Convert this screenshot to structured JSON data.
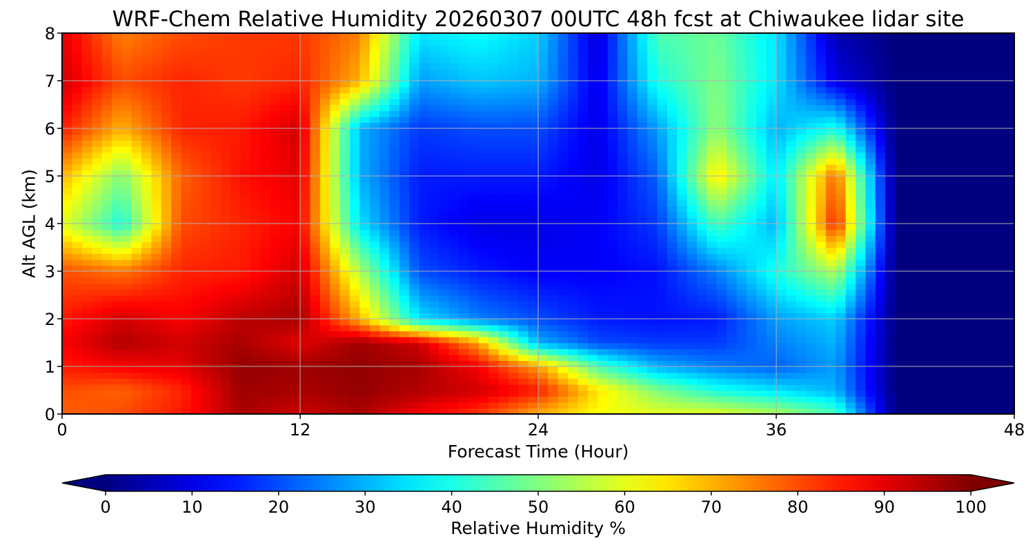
{
  "chart_data": {
    "type": "heatmap",
    "title": "WRF-Chem Relative Humidity 20260307 00UTC 48h fcst at Chiwaukee lidar site",
    "xlabel": "Forecast Time (Hour)",
    "ylabel": "Alt AGL (km)",
    "xlim": [
      0,
      48
    ],
    "ylim": [
      0,
      8
    ],
    "xticks": [
      0,
      12,
      24,
      36,
      48
    ],
    "yticks": [
      0,
      1,
      2,
      3,
      4,
      5,
      6,
      7,
      8
    ],
    "grid": true,
    "x": [
      0,
      3,
      6,
      9,
      12,
      15,
      18,
      21,
      24,
      27,
      30,
      33,
      36,
      39,
      42,
      45,
      48
    ],
    "y": [
      0,
      0.5,
      1,
      1.5,
      2,
      3,
      4,
      5,
      6,
      7,
      8
    ],
    "values": [
      [
        78,
        80,
        85,
        96,
        92,
        96,
        88,
        82,
        70,
        62,
        60,
        60,
        55,
        45,
        0,
        0,
        0
      ],
      [
        80,
        78,
        84,
        97,
        96,
        98,
        95,
        92,
        85,
        65,
        50,
        40,
        35,
        30,
        0,
        0,
        0
      ],
      [
        85,
        88,
        90,
        98,
        97,
        98,
        96,
        88,
        72,
        45,
        30,
        25,
        22,
        28,
        0,
        0,
        0
      ],
      [
        88,
        95,
        92,
        96,
        90,
        97,
        92,
        72,
        30,
        20,
        18,
        18,
        25,
        30,
        0,
        0,
        0
      ],
      [
        85,
        92,
        88,
        94,
        96,
        70,
        35,
        25,
        20,
        15,
        14,
        15,
        28,
        33,
        0,
        0,
        0
      ],
      [
        80,
        76,
        84,
        85,
        92,
        55,
        20,
        15,
        12,
        12,
        14,
        25,
        40,
        55,
        0,
        0,
        0
      ],
      [
        60,
        40,
        80,
        84,
        88,
        35,
        15,
        10,
        10,
        12,
        18,
        45,
        30,
        85,
        0,
        0,
        0
      ],
      [
        70,
        50,
        78,
        86,
        90,
        30,
        15,
        15,
        15,
        10,
        22,
        65,
        35,
        78,
        0,
        0,
        0
      ],
      [
        85,
        70,
        84,
        85,
        92,
        30,
        18,
        20,
        20,
        10,
        28,
        52,
        30,
        40,
        0,
        0,
        0
      ],
      [
        92,
        80,
        84,
        82,
        84,
        70,
        28,
        32,
        30,
        10,
        40,
        50,
        35,
        10,
        0,
        0,
        0
      ],
      [
        90,
        75,
        80,
        82,
        82,
        75,
        35,
        38,
        33,
        8,
        45,
        48,
        35,
        5,
        0,
        0,
        0
      ]
    ],
    "colorbar": {
      "label": "Relative Humidity %",
      "min": 0,
      "max": 100,
      "extend": "both",
      "ticks": [
        0,
        10,
        20,
        30,
        40,
        50,
        60,
        70,
        80,
        90,
        100
      ],
      "colormap": "jet"
    }
  }
}
